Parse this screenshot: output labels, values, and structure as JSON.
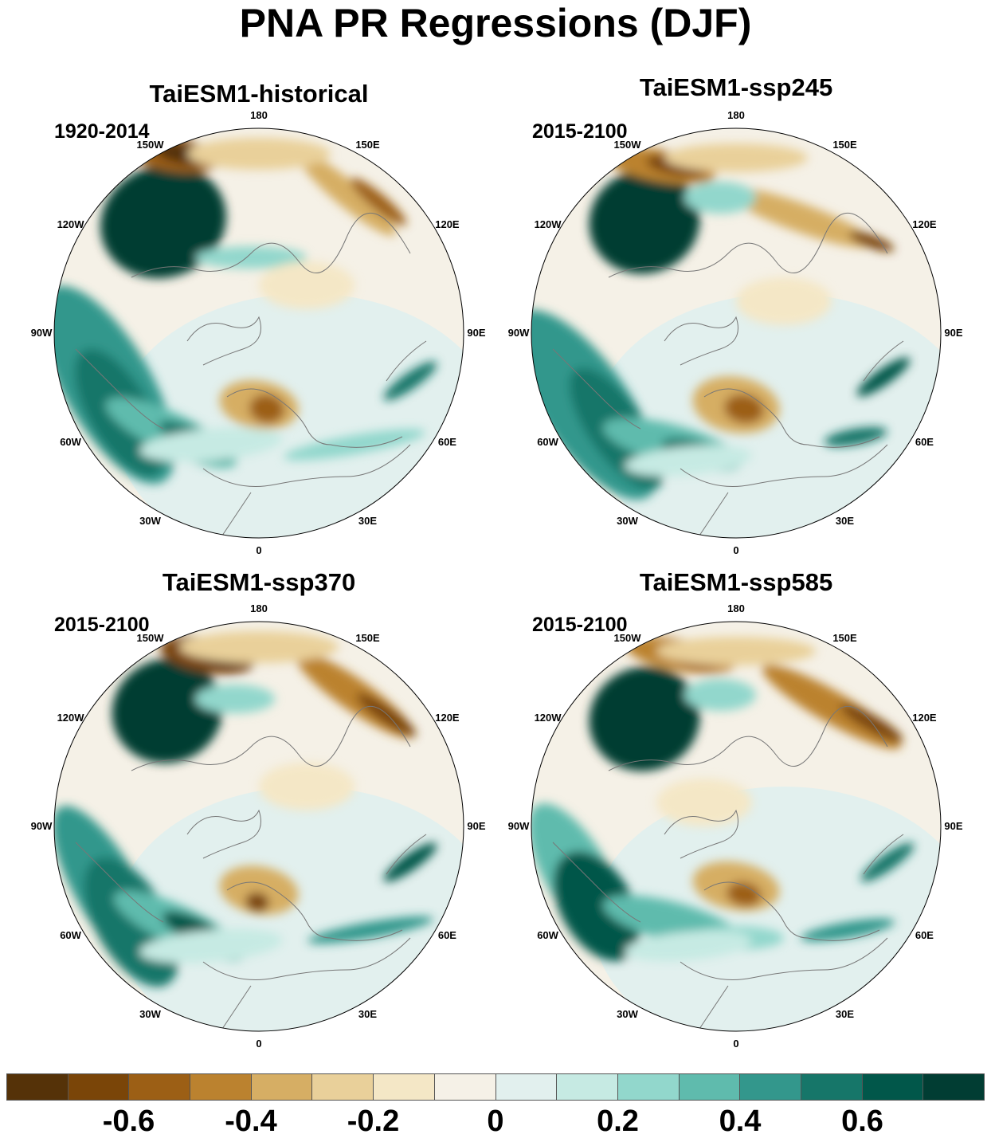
{
  "title": "PNA PR Regressions (DJF)",
  "panels": [
    {
      "title": "TaiESM1-historical",
      "period": "1920-2014"
    },
    {
      "title": "TaiESM1-ssp245",
      "period": "2015-2100"
    },
    {
      "title": "TaiESM1-ssp370",
      "period": "2015-2100"
    },
    {
      "title": "TaiESM1-ssp585",
      "period": "2015-2100"
    }
  ],
  "longitude_labels": [
    "180",
    "150E",
    "120E",
    "90E",
    "60E",
    "30E",
    "0",
    "30W",
    "60W",
    "90W",
    "120W",
    "150W"
  ],
  "colorbar": {
    "colors": [
      "#553208",
      "#7a4508",
      "#9c5f15",
      "#bb822f",
      "#d6ae64",
      "#e9d09a",
      "#f4e7c6",
      "#f5f1e7",
      "#e2f0ee",
      "#c6eae3",
      "#92d7cc",
      "#5fbbad",
      "#33978c",
      "#167669",
      "#01574a",
      "#013d33"
    ],
    "labels": [
      "-0.6",
      "-0.4",
      "-0.2",
      "0",
      "0.2",
      "0.4",
      "0.6"
    ]
  }
}
